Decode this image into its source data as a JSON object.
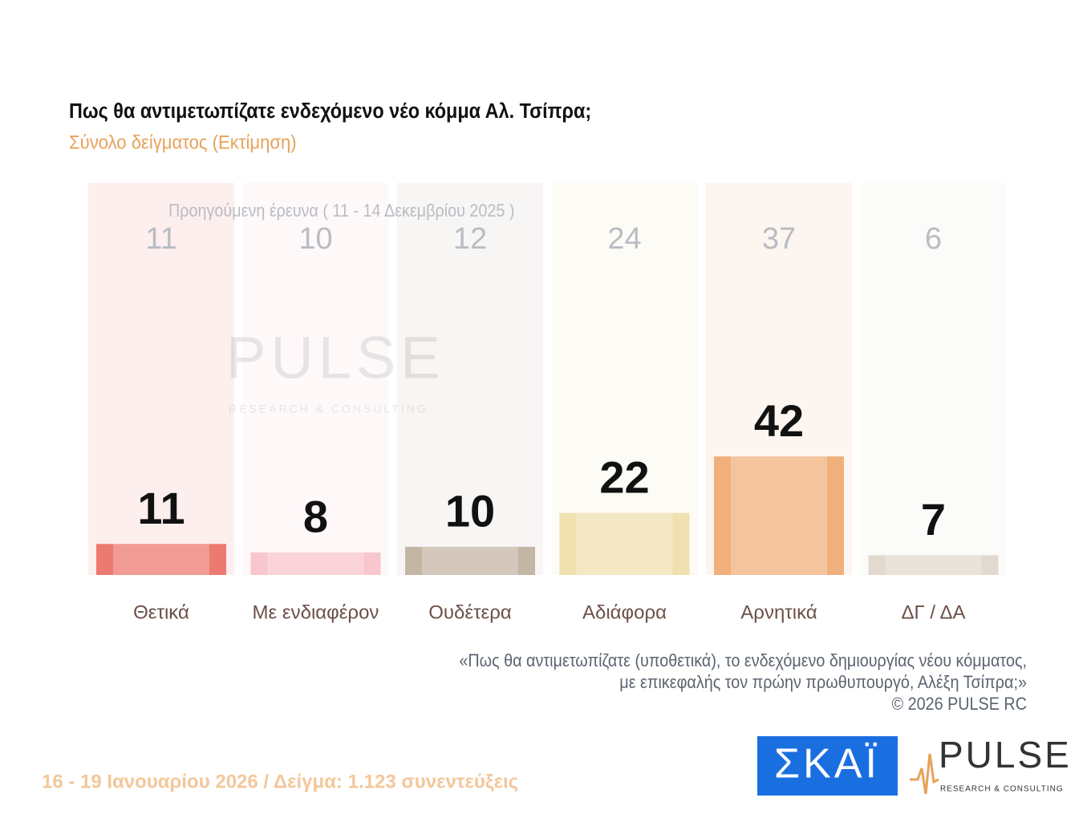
{
  "chart_data": {
    "type": "bar",
    "title": "Πως θα αντιμετωπίζατε ενδεχόμενο νέο κόμμα Αλ. Τσίπρα;",
    "subtitle": "Σύνολο δείγματος  (Εκτίμηση)",
    "categories": [
      "Θετικά",
      "Με ενδιαφέρον",
      "Ουδέτερα",
      "Αδιάφορα",
      "Αρνητικά",
      "ΔΓ / ΔΑ"
    ],
    "values": [
      11,
      8,
      10,
      22,
      42,
      7
    ],
    "colors": [
      "#ec7a70",
      "#f8c6cd",
      "#c4b6a4",
      "#f1e1b0",
      "#f0b07c",
      "#e2dace"
    ],
    "previous": {
      "label": "Προηγούμενη έρευνα ( 11 - 14 Δεκεμβρίου 2025 )",
      "values": [
        11,
        10,
        12,
        24,
        37,
        6
      ]
    },
    "note": [
      "«Πως θα αντιμετωπίζατε (υποθετικά), το ενδεχόμενο δημιουργίας νέου κόμματος,",
      "με επικεφαλής τον πρώην πρωθυπουργό, Αλέξη Τσίπρα;»",
      "©  2026  PULSE RC"
    ],
    "footer": "16 - 19 Ιανουαρίου 2026  /  Δείγμα:  1.123 συνεντεύξεις",
    "logos": {
      "skai": "ΣΚΑΪ",
      "pulse": "PULSE",
      "tagline": "RESEARCH & CONSULTING"
    }
  }
}
